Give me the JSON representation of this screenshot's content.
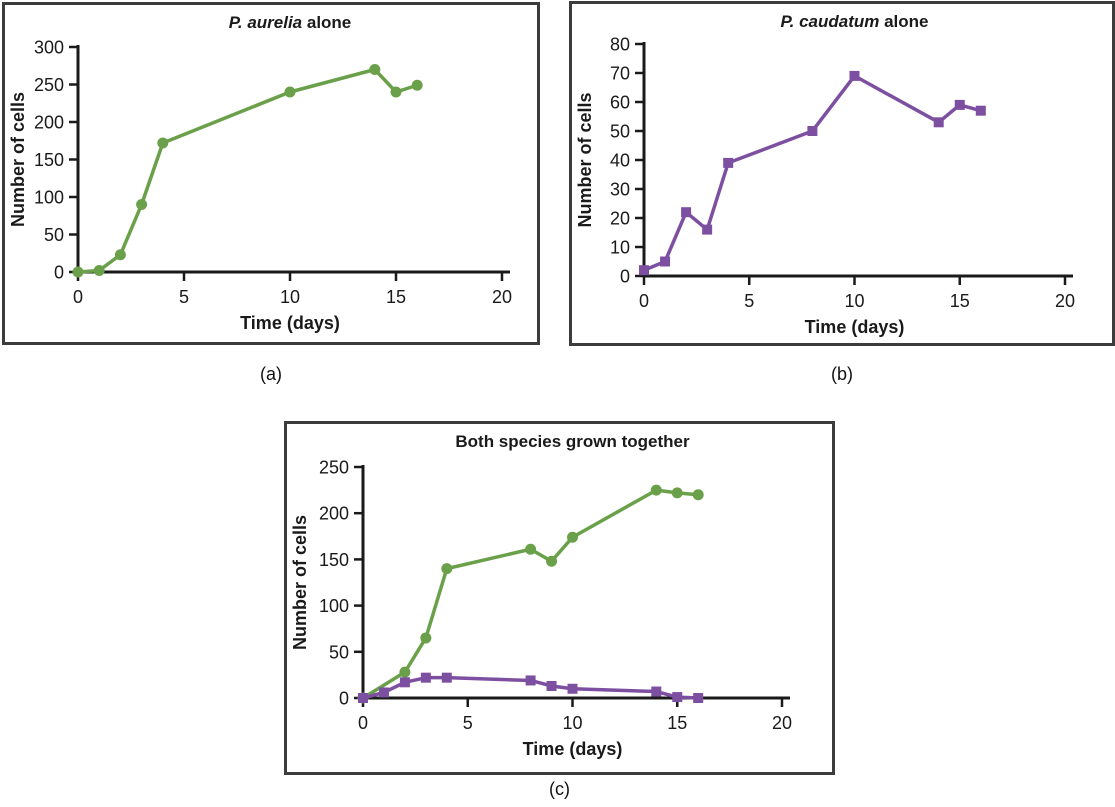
{
  "figure": {
    "captions": {
      "a": "(a)",
      "b": "(b)",
      "c": "(c)"
    }
  },
  "colors": {
    "aurelia_green": "#6ba04b",
    "caudatum_purple": "#7d4fa1",
    "axis": "#1a1a1a",
    "panel_border": "#3c3c3c"
  },
  "chart_data": [
    {
      "id": "a",
      "type": "line",
      "title": "P. aurelia alone",
      "title_parts": [
        {
          "text": "P. aurelia",
          "italic": true
        },
        {
          "text": " alone",
          "italic": false
        }
      ],
      "xlabel": "Time (days)",
      "ylabel": "Number of cells",
      "xlim": [
        0,
        20
      ],
      "ylim": [
        0,
        300
      ],
      "xticks": [
        0,
        5,
        10,
        15,
        20
      ],
      "yticks": [
        0,
        50,
        100,
        150,
        200,
        250,
        300
      ],
      "grid": false,
      "legend": "none",
      "series": [
        {
          "name": "P. aurelia",
          "marker": "circle",
          "color": "aurelia_green",
          "x": [
            0,
            1,
            2,
            3,
            4,
            10,
            14,
            15,
            16
          ],
          "y": [
            0,
            2,
            23,
            90,
            172,
            240,
            270,
            240,
            249
          ]
        }
      ]
    },
    {
      "id": "b",
      "type": "line",
      "title": "P. caudatum alone",
      "title_parts": [
        {
          "text": "P. caudatum",
          "italic": true
        },
        {
          "text": " alone",
          "italic": false
        }
      ],
      "xlabel": "Time (days)",
      "ylabel": "Number of cells",
      "xlim": [
        0,
        20
      ],
      "ylim": [
        0,
        80
      ],
      "xticks": [
        0,
        5,
        10,
        15,
        20
      ],
      "yticks": [
        0,
        10,
        20,
        30,
        40,
        50,
        60,
        70,
        80
      ],
      "grid": false,
      "legend": "none",
      "series": [
        {
          "name": "P. caudatum",
          "marker": "square",
          "color": "caudatum_purple",
          "x": [
            0,
            1,
            2,
            3,
            4,
            8,
            10,
            14,
            15,
            16
          ],
          "y": [
            2,
            5,
            22,
            16,
            39,
            50,
            69,
            53,
            59,
            57
          ]
        }
      ]
    },
    {
      "id": "c",
      "type": "line",
      "title": "Both species grown together",
      "title_parts": [
        {
          "text": "Both species grown together",
          "italic": false
        }
      ],
      "xlabel": "Time (days)",
      "ylabel": "Number of cells",
      "xlim": [
        0,
        20
      ],
      "ylim": [
        0,
        250
      ],
      "xticks": [
        0,
        5,
        10,
        15,
        20
      ],
      "yticks": [
        0,
        50,
        100,
        150,
        200,
        250
      ],
      "grid": false,
      "legend": "none",
      "series": [
        {
          "name": "P. aurelia",
          "marker": "circle",
          "color": "aurelia_green",
          "x": [
            0,
            2,
            3,
            4,
            8,
            9,
            10,
            14,
            15,
            16
          ],
          "y": [
            0,
            28,
            65,
            140,
            161,
            148,
            174,
            225,
            222,
            220
          ]
        },
        {
          "name": "P. caudatum",
          "marker": "square",
          "color": "caudatum_purple",
          "x": [
            0,
            1,
            2,
            3,
            4,
            8,
            9,
            10,
            14,
            15,
            16
          ],
          "y": [
            0,
            6,
            17,
            22,
            22,
            19,
            13,
            10,
            7,
            1,
            0
          ]
        }
      ]
    }
  ]
}
